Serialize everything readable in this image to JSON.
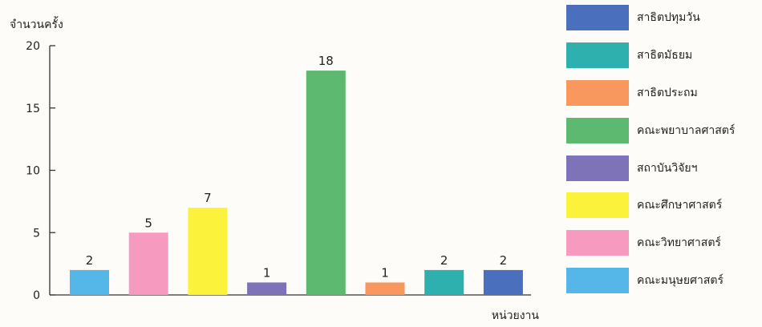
{
  "chart_data": {
    "type": "bar",
    "ylabel": "จำนวนครั้ง",
    "xlabel": "หน่วยงาน",
    "ylim": [
      0,
      20
    ],
    "yticks": [
      0,
      5,
      10,
      15,
      20
    ],
    "grid": false,
    "legend_position": "right",
    "bars": [
      {
        "value": 2,
        "label": "2",
        "color": "#55b6e8"
      },
      {
        "value": 5,
        "label": "5",
        "color": "#f79ac0"
      },
      {
        "value": 7,
        "label": "7",
        "color": "#fbf23c"
      },
      {
        "value": 1,
        "label": "1",
        "color": "#7e72b8"
      },
      {
        "value": 18,
        "label": "18",
        "color": "#5cb96f"
      },
      {
        "value": 1,
        "label": "1",
        "color": "#f8985e"
      },
      {
        "value": 2,
        "label": "2",
        "color": "#2eb0ae"
      },
      {
        "value": 2,
        "label": "2",
        "color": "#4a6fbc"
      }
    ],
    "legend": [
      {
        "label": "สาธิตปทุมวัน",
        "color": "#4a6fbc"
      },
      {
        "label": "สาธิตมัธยม",
        "color": "#2eb0ae"
      },
      {
        "label": "สาธิตประถม",
        "color": "#f8985e"
      },
      {
        "label": "คณะพยาบาลศาสตร์",
        "color": "#5cb96f"
      },
      {
        "label": "สถาบันวิจัยฯ",
        "color": "#7e72b8"
      },
      {
        "label": "คณะศึกษาศาสตร์",
        "color": "#fbf23c"
      },
      {
        "label": "คณะวิทยาศาสตร์",
        "color": "#f79ac0"
      },
      {
        "label": "คณะมนุษยศาสตร์",
        "color": "#55b6e8"
      }
    ]
  }
}
